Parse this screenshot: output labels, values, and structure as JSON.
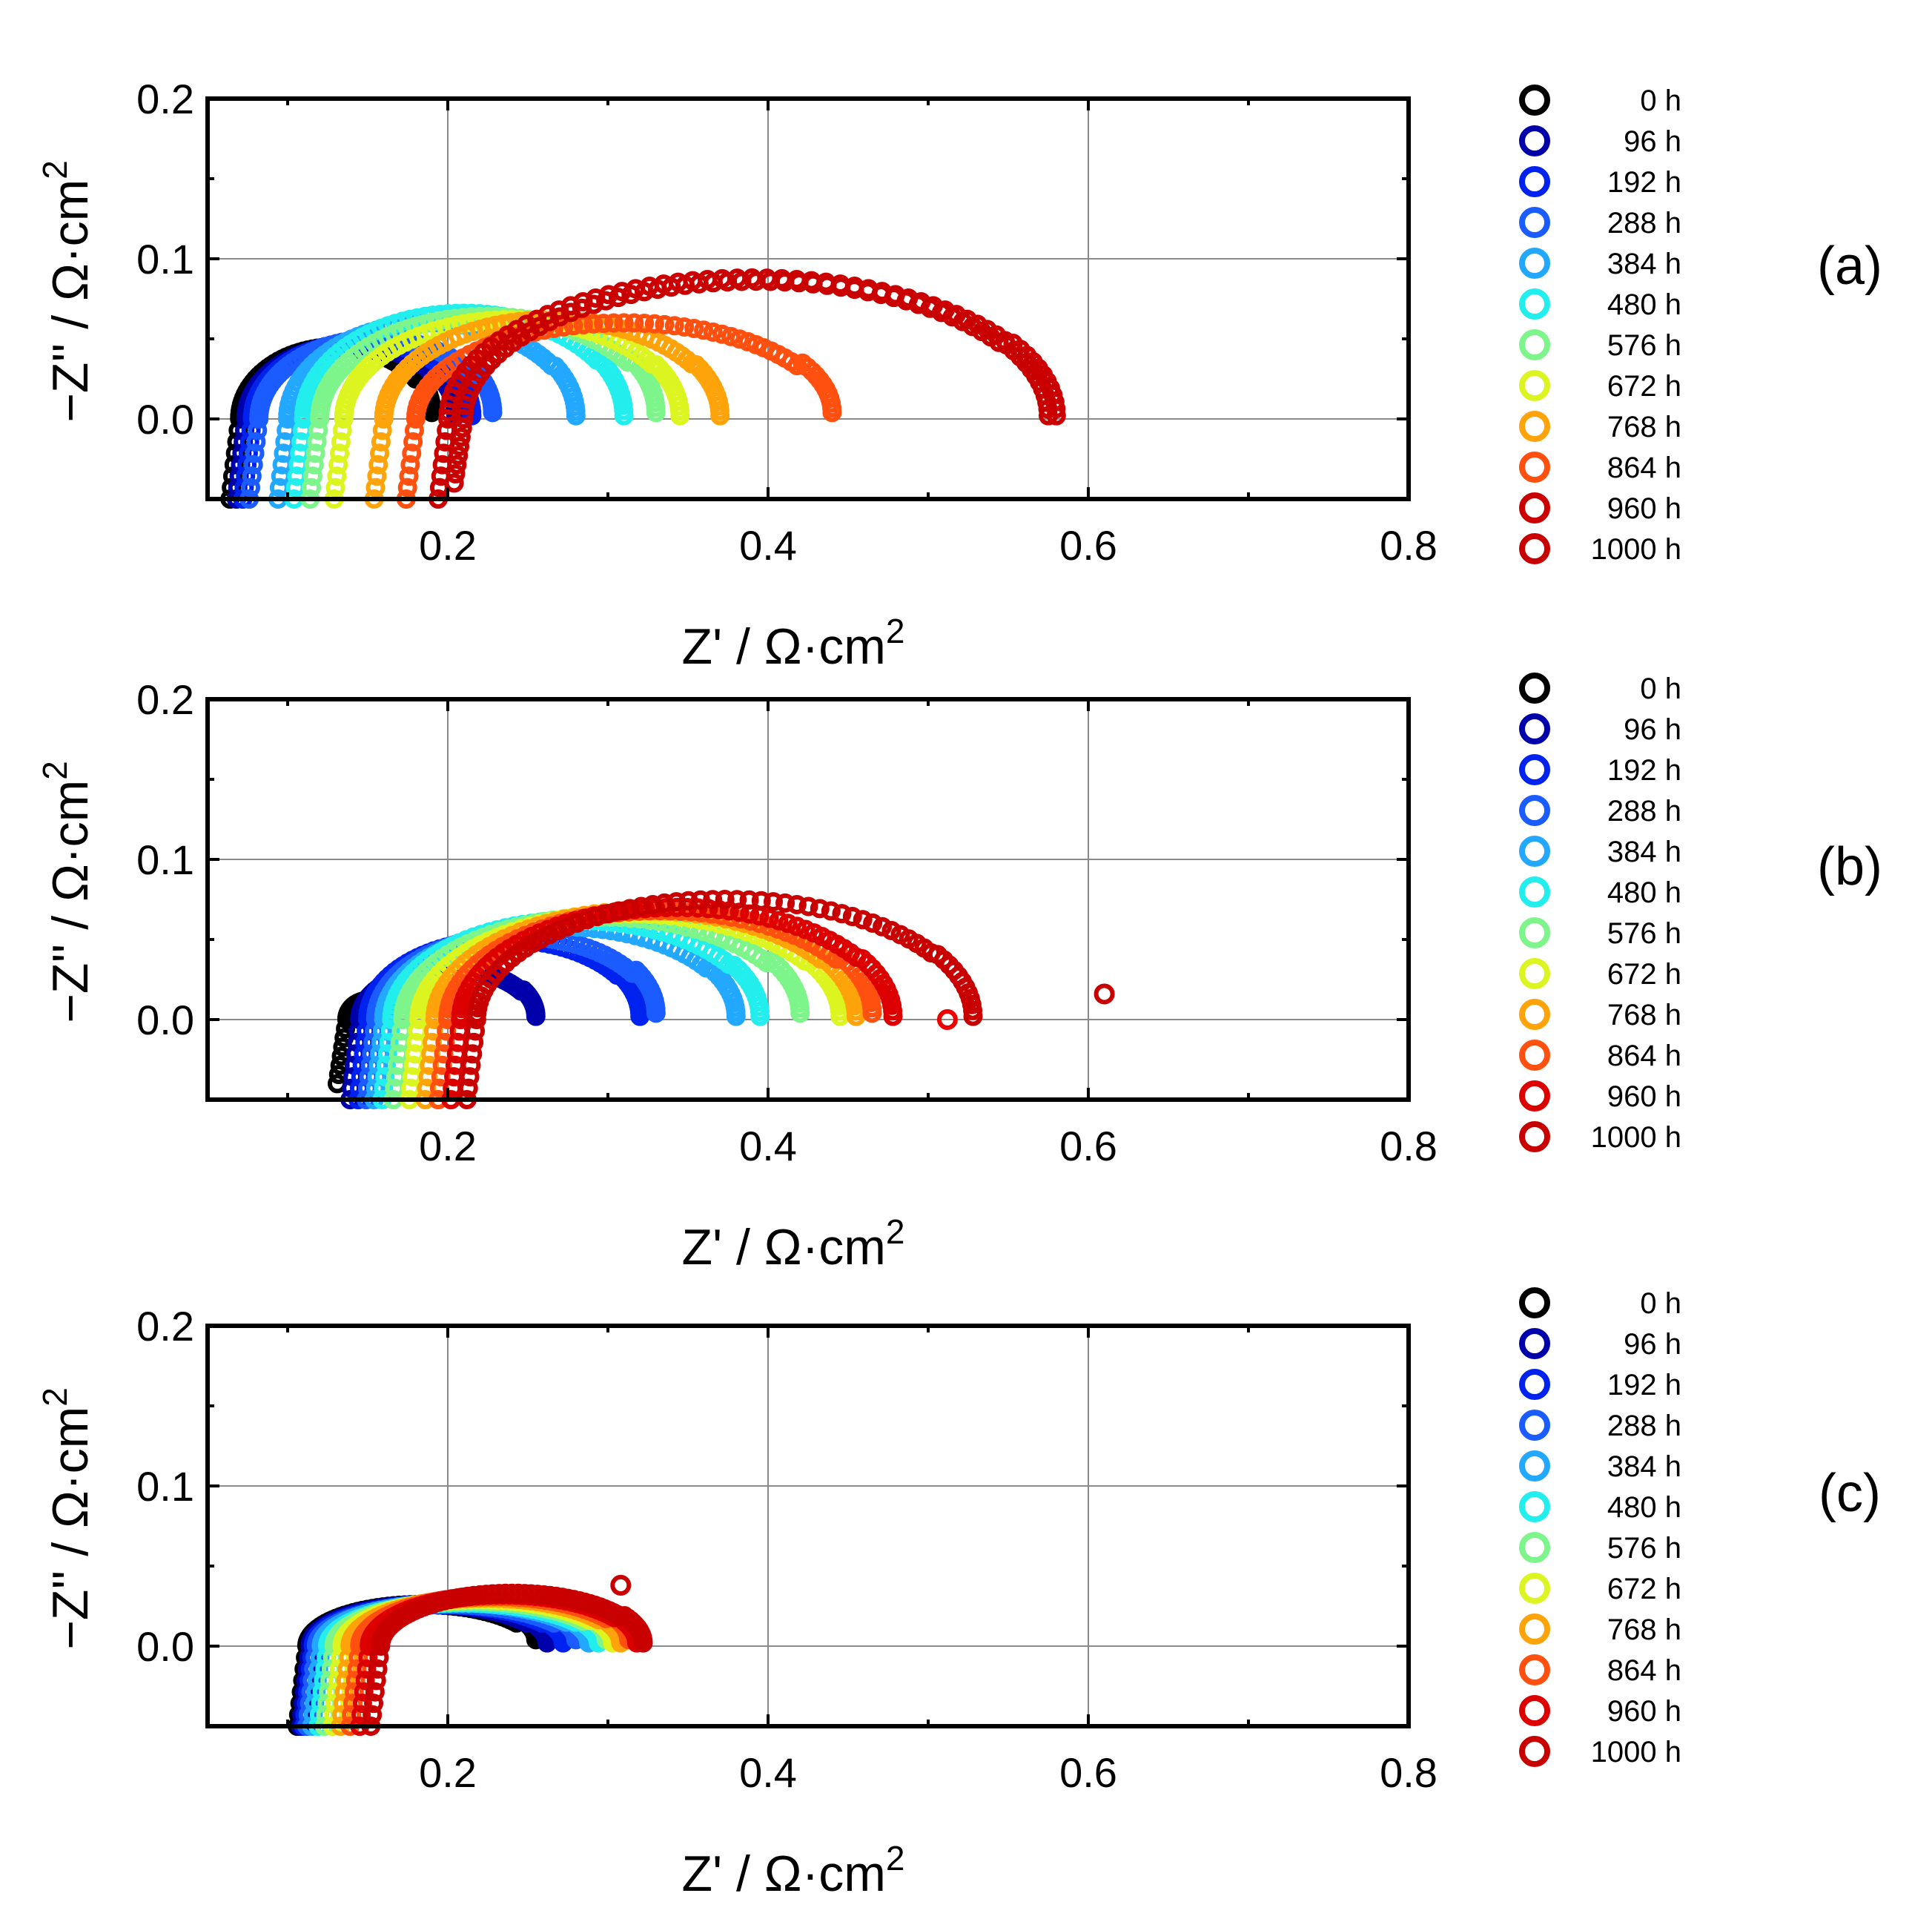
{
  "chart_data": [
    {
      "type": "scatter",
      "panel_label": "(a)",
      "xlabel": "Z' / Ω·cm",
      "ylabel": "−Z'' / Ω·cm",
      "unit_exponent": "2",
      "xlim": [
        0.05,
        0.8
      ],
      "ylim": [
        -0.05,
        0.2
      ],
      "xticks": [
        "0.2",
        "0.4",
        "0.6",
        "0.8"
      ],
      "yticks": [
        "0.0",
        "0.1",
        "0.2"
      ],
      "grid": true,
      "legend": "right",
      "series": [
        {
          "name": "0 h",
          "color": "#000000",
          "shape": [
            0.07,
            0.19,
            0.045,
            -0.05
          ]
        },
        {
          "name": "96 h",
          "color": "#0000aa",
          "shape": [
            0.074,
            0.205,
            0.046,
            -0.05
          ]
        },
        {
          "name": "192 h",
          "color": "#0022ee",
          "shape": [
            0.078,
            0.215,
            0.048,
            -0.05
          ]
        },
        {
          "name": "288 h",
          "color": "#1a5cff",
          "shape": [
            0.082,
            0.228,
            0.05,
            -0.05
          ]
        },
        {
          "name": "384 h",
          "color": "#22a8ff",
          "shape": [
            0.1,
            0.28,
            0.06,
            -0.05
          ]
        },
        {
          "name": "480 h",
          "color": "#22eeee",
          "shape": [
            0.11,
            0.31,
            0.066,
            -0.05
          ]
        },
        {
          "name": "576 h",
          "color": "#7ef58a",
          "shape": [
            0.12,
            0.33,
            0.064,
            -0.05
          ]
        },
        {
          "name": "672 h",
          "color": "#dcf520",
          "shape": [
            0.135,
            0.345,
            0.062,
            -0.05
          ]
        },
        {
          "name": "768 h",
          "color": "#ffa30a",
          "shape": [
            0.16,
            0.37,
            0.062,
            -0.05
          ]
        },
        {
          "name": "864 h",
          "color": "#ff5010",
          "shape": [
            0.18,
            0.44,
            0.06,
            -0.05
          ]
        },
        {
          "name": "960 h",
          "color": "#cc0000",
          "shape": [
            0.2,
            0.58,
            0.088,
            -0.05
          ]
        },
        {
          "name": "1000 h",
          "color": "#c80000",
          "shape": [
            0.21,
            0.575,
            0.086,
            -0.04
          ]
        }
      ]
    },
    {
      "type": "scatter",
      "panel_label": "(b)",
      "xlabel": "Z' / Ω·cm",
      "ylabel": "−Z'' / Ω·cm",
      "unit_exponent": "2",
      "xlim": [
        0.05,
        0.8
      ],
      "ylim": [
        -0.05,
        0.2
      ],
      "xticks": [
        "0.2",
        "0.4",
        "0.6",
        "0.8"
      ],
      "yticks": [
        "0.0",
        "0.1",
        "0.2"
      ],
      "grid": true,
      "legend": "right",
      "series": [
        {
          "name": "0 h",
          "color": "#000000",
          "shape": [
            0.137,
            0.165,
            0.012,
            -0.04
          ]
        },
        {
          "name": "96 h",
          "color": "#0000aa",
          "shape": [
            0.145,
            0.255,
            0.032,
            -0.05
          ]
        },
        {
          "name": "192 h",
          "color": "#0022ee",
          "shape": [
            0.15,
            0.32,
            0.05,
            -0.05
          ]
        },
        {
          "name": "288 h",
          "color": "#1a5cff",
          "shape": [
            0.155,
            0.33,
            0.052,
            -0.05
          ]
        },
        {
          "name": "384 h",
          "color": "#22a8ff",
          "shape": [
            0.16,
            0.38,
            0.058,
            -0.05
          ]
        },
        {
          "name": "480 h",
          "color": "#22eeee",
          "shape": [
            0.165,
            0.395,
            0.062,
            -0.05
          ]
        },
        {
          "name": "576 h",
          "color": "#7ef58a",
          "shape": [
            0.172,
            0.42,
            0.064,
            -0.05
          ]
        },
        {
          "name": "672 h",
          "color": "#dcf520",
          "shape": [
            0.182,
            0.445,
            0.066,
            -0.05
          ]
        },
        {
          "name": "768 h",
          "color": "#ffa30a",
          "shape": [
            0.192,
            0.455,
            0.068,
            -0.05
          ]
        },
        {
          "name": "864 h",
          "color": "#ff5010",
          "shape": [
            0.2,
            0.465,
            0.068,
            -0.05
          ]
        },
        {
          "name": "960 h",
          "color": "#dd0000",
          "shape": [
            0.208,
            0.478,
            0.07,
            -0.05
          ]
        },
        {
          "name": "1000 h",
          "color": "#c80000",
          "shape": [
            0.218,
            0.528,
            0.075,
            -0.05
          ]
        }
      ],
      "outliers": [
        {
          "x": 0.512,
          "y": 0.0,
          "color": "#ee0000"
        },
        {
          "x": 0.61,
          "y": 0.016,
          "color": "#c80000"
        }
      ]
    },
    {
      "type": "scatter",
      "panel_label": "(c)",
      "xlabel": "Z' / Ω·cm",
      "ylabel": "−Z'' / Ω·cm",
      "unit_exponent": "2",
      "xlim": [
        0.05,
        0.8
      ],
      "ylim": [
        -0.05,
        0.2
      ],
      "xticks": [
        "0.2",
        "0.4",
        "0.6",
        "0.8"
      ],
      "yticks": [
        "0.0",
        "0.1",
        "0.2"
      ],
      "grid": true,
      "legend": "right",
      "series": [
        {
          "name": "0 h",
          "color": "#000000",
          "shape": [
            0.112,
            0.255,
            0.026,
            -0.05
          ]
        },
        {
          "name": "96 h",
          "color": "#0000aa",
          "shape": [
            0.114,
            0.262,
            0.026,
            -0.05
          ]
        },
        {
          "name": "192 h",
          "color": "#0022ee",
          "shape": [
            0.116,
            0.272,
            0.026,
            -0.05
          ]
        },
        {
          "name": "288 h",
          "color": "#1a5cff",
          "shape": [
            0.118,
            0.28,
            0.026,
            -0.05
          ]
        },
        {
          "name": "384 h",
          "color": "#22a8ff",
          "shape": [
            0.121,
            0.288,
            0.027,
            -0.05
          ]
        },
        {
          "name": "480 h",
          "color": "#22eeee",
          "shape": [
            0.125,
            0.294,
            0.027,
            -0.05
          ]
        },
        {
          "name": "576 h",
          "color": "#7ef58a",
          "shape": [
            0.129,
            0.299,
            0.028,
            -0.05
          ]
        },
        {
          "name": "672 h",
          "color": "#dcf520",
          "shape": [
            0.134,
            0.303,
            0.029,
            -0.05
          ]
        },
        {
          "name": "768 h",
          "color": "#ffa30a",
          "shape": [
            0.139,
            0.308,
            0.03,
            -0.05
          ]
        },
        {
          "name": "864 h",
          "color": "#ff5010",
          "shape": [
            0.145,
            0.313,
            0.031,
            -0.05
          ]
        },
        {
          "name": "960 h",
          "color": "#dd0000",
          "shape": [
            0.151,
            0.318,
            0.032,
            -0.05
          ]
        },
        {
          "name": "1000 h",
          "color": "#c80000",
          "shape": [
            0.158,
            0.322,
            0.033,
            -0.05
          ]
        }
      ],
      "outliers": [
        {
          "x": 0.308,
          "y": 0.038,
          "color": "#c80000"
        }
      ]
    }
  ]
}
